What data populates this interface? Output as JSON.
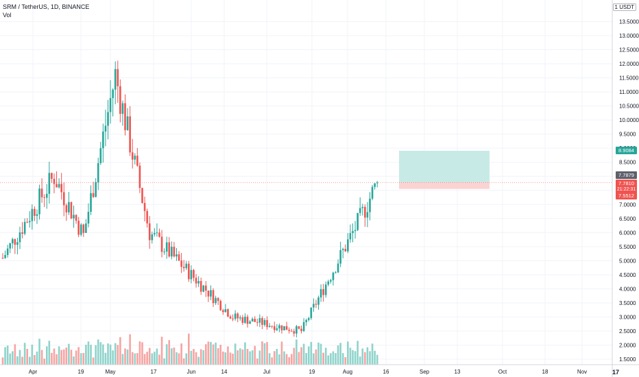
{
  "header": {
    "symbol": "SRM / TetherUS, 1D, BINANCE",
    "volume_label": "Vol",
    "unit": "USDT",
    "unit_arrow": "1"
  },
  "logo_text": "17",
  "colors": {
    "up": "#26a69a",
    "down": "#ef5350",
    "vol_up": "#8fd3cb",
    "vol_down": "#f7a4a2",
    "target_zone": "#c8eae7",
    "stop_zone": "#fbd3d3",
    "target_tag": "#26a69a",
    "stop_tag": "#ef5350",
    "price_tag": "#ef5350",
    "last_tag": "#5d606b"
  },
  "price_tags": {
    "target": "8.9084",
    "last": "7.7879",
    "current": "7.7810",
    "countdown": "21:22:31",
    "stop": "7.5512"
  },
  "chart_data": {
    "type": "candlestick",
    "title": "SRM / TetherUS, 1D, BINANCE",
    "y_ticks": [
      "1.5000",
      "2.0000",
      "2.5000",
      "3.0000",
      "3.5000",
      "4.0000",
      "4.5000",
      "5.0000",
      "5.5000",
      "6.0000",
      "6.5000",
      "7.0000",
      "7.5000",
      "8.0000",
      "8.5000",
      "9.0000",
      "9.5000",
      "10.0000",
      "10.5000",
      "11.0000",
      "11.5000",
      "12.0000",
      "12.5000",
      "13.0000",
      "13.5000"
    ],
    "x_ticks": [
      "Apr",
      "19",
      "May",
      "17",
      "Jun",
      "14",
      "Jul",
      "19",
      "Aug",
      "16",
      "Sep",
      "13",
      "Oct",
      "18",
      "Nov"
    ],
    "ylim": [
      1.3,
      14.0
    ],
    "key_points": [
      {
        "date": "2021-03-20",
        "close": 5.1
      },
      {
        "date": "2021-04-10",
        "close": 8.0
      },
      {
        "date": "2021-04-22",
        "close": 5.9
      },
      {
        "date": "2021-05-05",
        "close": 11.6
      },
      {
        "date": "2021-05-19",
        "close": 6.0
      },
      {
        "date": "2021-06-22",
        "close": 3.0
      },
      {
        "date": "2021-07-20",
        "close": 2.5
      },
      {
        "date": "2021-08-13",
        "close": 6.5
      },
      {
        "date": "2021-08-20",
        "close": 7.781
      }
    ],
    "position": {
      "entry": 7.781,
      "target": 8.9084,
      "stop": 7.5512
    },
    "grid": true
  }
}
